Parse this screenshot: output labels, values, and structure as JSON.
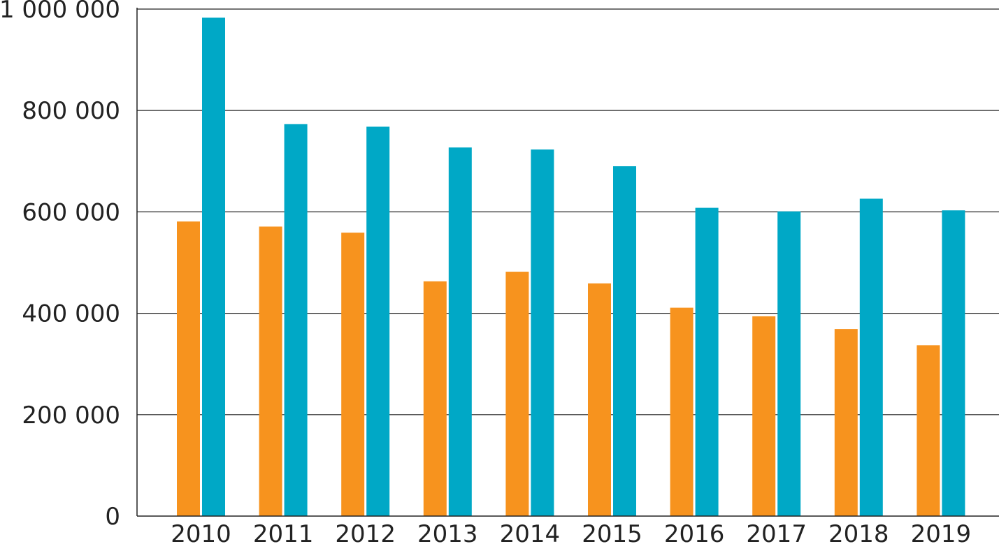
{
  "colors": {
    "series_1": "#f7931e",
    "series_2": "#00a8c6",
    "grid": "#222222",
    "text": "#222222"
  },
  "chart_data": {
    "type": "bar",
    "categories": [
      "2010",
      "2011",
      "2012",
      "2013",
      "2014",
      "2015",
      "2016",
      "2017",
      "2018",
      "2019"
    ],
    "series": [
      {
        "values": [
          581000,
          571000,
          559000,
          463000,
          482000,
          459000,
          411000,
          394000,
          369000,
          337000
        ]
      },
      {
        "values": [
          983000,
          773000,
          768000,
          727000,
          723000,
          690000,
          608000,
          601000,
          626000,
          603000
        ]
      }
    ],
    "yticks": [
      0,
      200000,
      400000,
      600000,
      800000,
      1000000
    ],
    "ytick_labels": [
      "0",
      "200 000",
      "400 000",
      "600 000",
      "800 000",
      "1 000 000"
    ],
    "ylim": [
      0,
      1000000
    ],
    "grid": true,
    "legend": "none",
    "title": "",
    "xlabel": "",
    "ylabel": ""
  }
}
